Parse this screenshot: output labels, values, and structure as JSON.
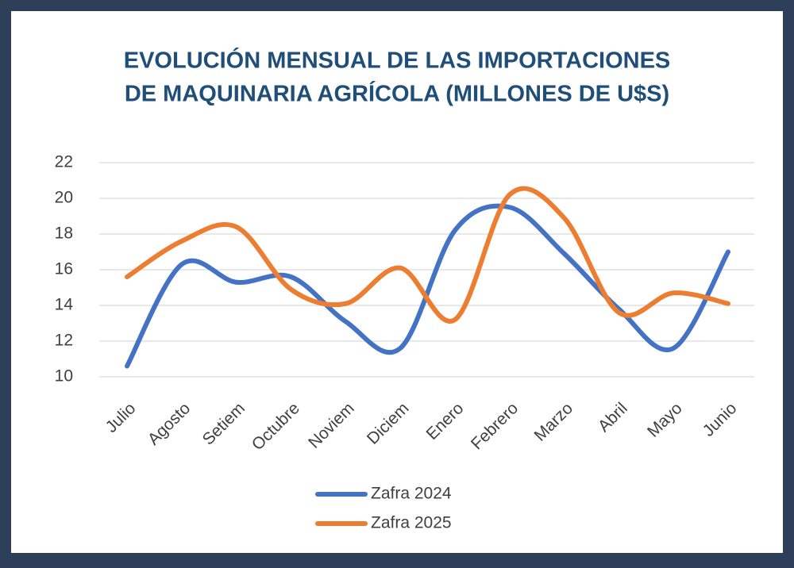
{
  "chart_data": {
    "type": "line",
    "title": [
      "EVOLUCIÓN MENSUAL DE LAS IMPORTACIONES",
      "DE MAQUINARIA AGRÍCOLA (MILLONES DE U$S)"
    ],
    "categories": [
      "Julio",
      "Agosto",
      "Setiem",
      "Octubre",
      "Noviem",
      "Diciem",
      "Enero",
      "Febrero",
      "Marzo",
      "Abril",
      "Mayo",
      "Junio"
    ],
    "series": [
      {
        "name": "Zafra 2024",
        "color": "#4472c4",
        "values": [
          10.6,
          16.3,
          15.3,
          15.6,
          13.1,
          11.6,
          18.2,
          19.5,
          16.9,
          13.8,
          11.6,
          17.0
        ]
      },
      {
        "name": "Zafra 2025",
        "color": "#ed7d31",
        "values": [
          15.6,
          17.6,
          18.4,
          14.9,
          14.1,
          16.1,
          13.2,
          20.2,
          18.9,
          13.6,
          14.7,
          14.1
        ]
      }
    ],
    "ylim": [
      10,
      22
    ],
    "yticks": [
      10,
      12,
      14,
      16,
      18,
      20,
      22
    ],
    "grid": true,
    "smooth": true,
    "legend": "bottom"
  }
}
